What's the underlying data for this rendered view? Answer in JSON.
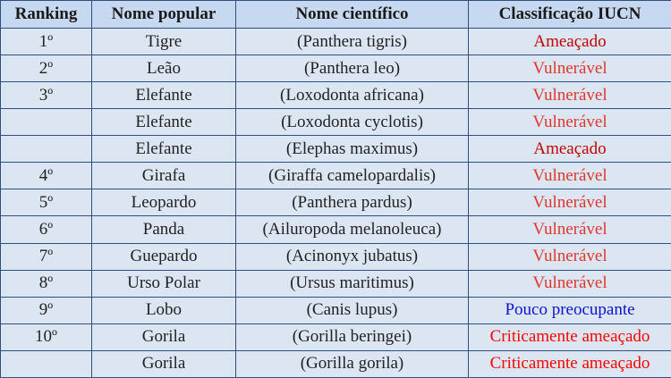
{
  "table": {
    "header": [
      "Ranking",
      "Nome popular",
      "Nome científico",
      "Classificação IUCN"
    ],
    "rows": [
      [
        "1º",
        "Tigre",
        "(Panthera tigris)",
        "Ameaçado",
        "#c00000"
      ],
      [
        "2º",
        "Leão",
        "(Panthera leo)",
        "Vulnerável",
        "#e0362c"
      ],
      [
        "3º",
        "Elefante",
        "(Loxodonta africana)",
        "Vulnerável",
        "#e0362c"
      ],
      [
        null,
        "Elefante",
        "(Loxodonta cyclotis)",
        "Vulnerável",
        "#e0362c"
      ],
      [
        null,
        "Elefante",
        "(Elephas maximus)",
        "Ameaçado",
        "#c00000"
      ],
      [
        "4º",
        "Girafa",
        "(Giraffa camelopardalis)",
        "Vulnerável",
        "#e0362c"
      ],
      [
        "5º",
        "Leopardo",
        "(Panthera pardus)",
        "Vulnerável",
        "#e0362c"
      ],
      [
        "6º",
        "Panda",
        "(Ailuropoda melanoleuca)",
        "Vulnerável",
        "#e0362c"
      ],
      [
        "7º",
        "Guepardo",
        "(Acinonyx jubatus)",
        "Vulnerável",
        "#e0362c"
      ],
      [
        "8º",
        "Urso Polar",
        "(Ursus maritimus)",
        "Vulnerável",
        "#e0362c"
      ],
      [
        "9º",
        "Lobo",
        "(Canis lupus)",
        "Pouco preocupante",
        "#1010d0"
      ],
      [
        "10º",
        "Gorila",
        "(Gorilla beringei)",
        "Criticamente ameaçado",
        "#ff0000"
      ],
      [
        null,
        "Gorila",
        "(Gorilla gorila)",
        "Criticamente ameaçado",
        "#ff0000"
      ]
    ]
  }
}
